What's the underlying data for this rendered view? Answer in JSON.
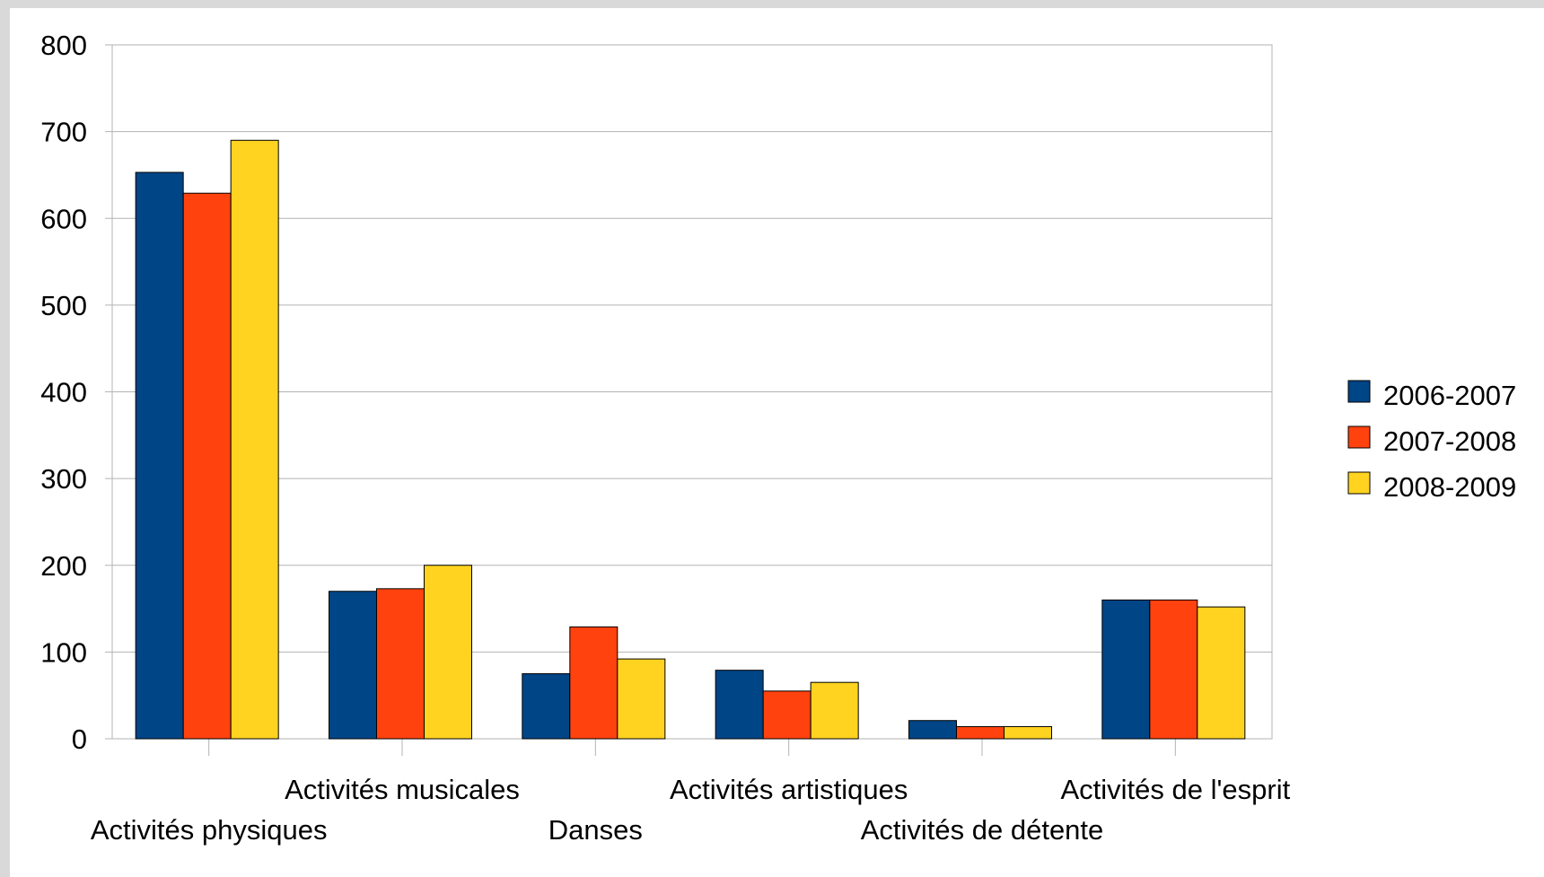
{
  "chart_data": {
    "type": "bar",
    "categories": [
      "Activités physiques",
      "Activités musicales",
      "Danses",
      "Activités artistiques",
      "Activités de détente",
      "Activités de l'esprit"
    ],
    "series": [
      {
        "name": "2006-2007",
        "color": "#004586",
        "values": [
          653,
          170,
          75,
          79,
          21,
          160
        ]
      },
      {
        "name": "2007-2008",
        "color": "#ff420e",
        "values": [
          629,
          173,
          129,
          55,
          14,
          160
        ]
      },
      {
        "name": "2008-2009",
        "color": "#ffd320",
        "values": [
          690,
          200,
          92,
          65,
          14,
          152
        ]
      }
    ],
    "title": "",
    "xlabel": "",
    "ylabel": "",
    "ylim": [
      0,
      800
    ],
    "yticks": [
      0,
      100,
      200,
      300,
      400,
      500,
      600,
      700,
      800
    ],
    "grid": true,
    "legend": "right"
  }
}
